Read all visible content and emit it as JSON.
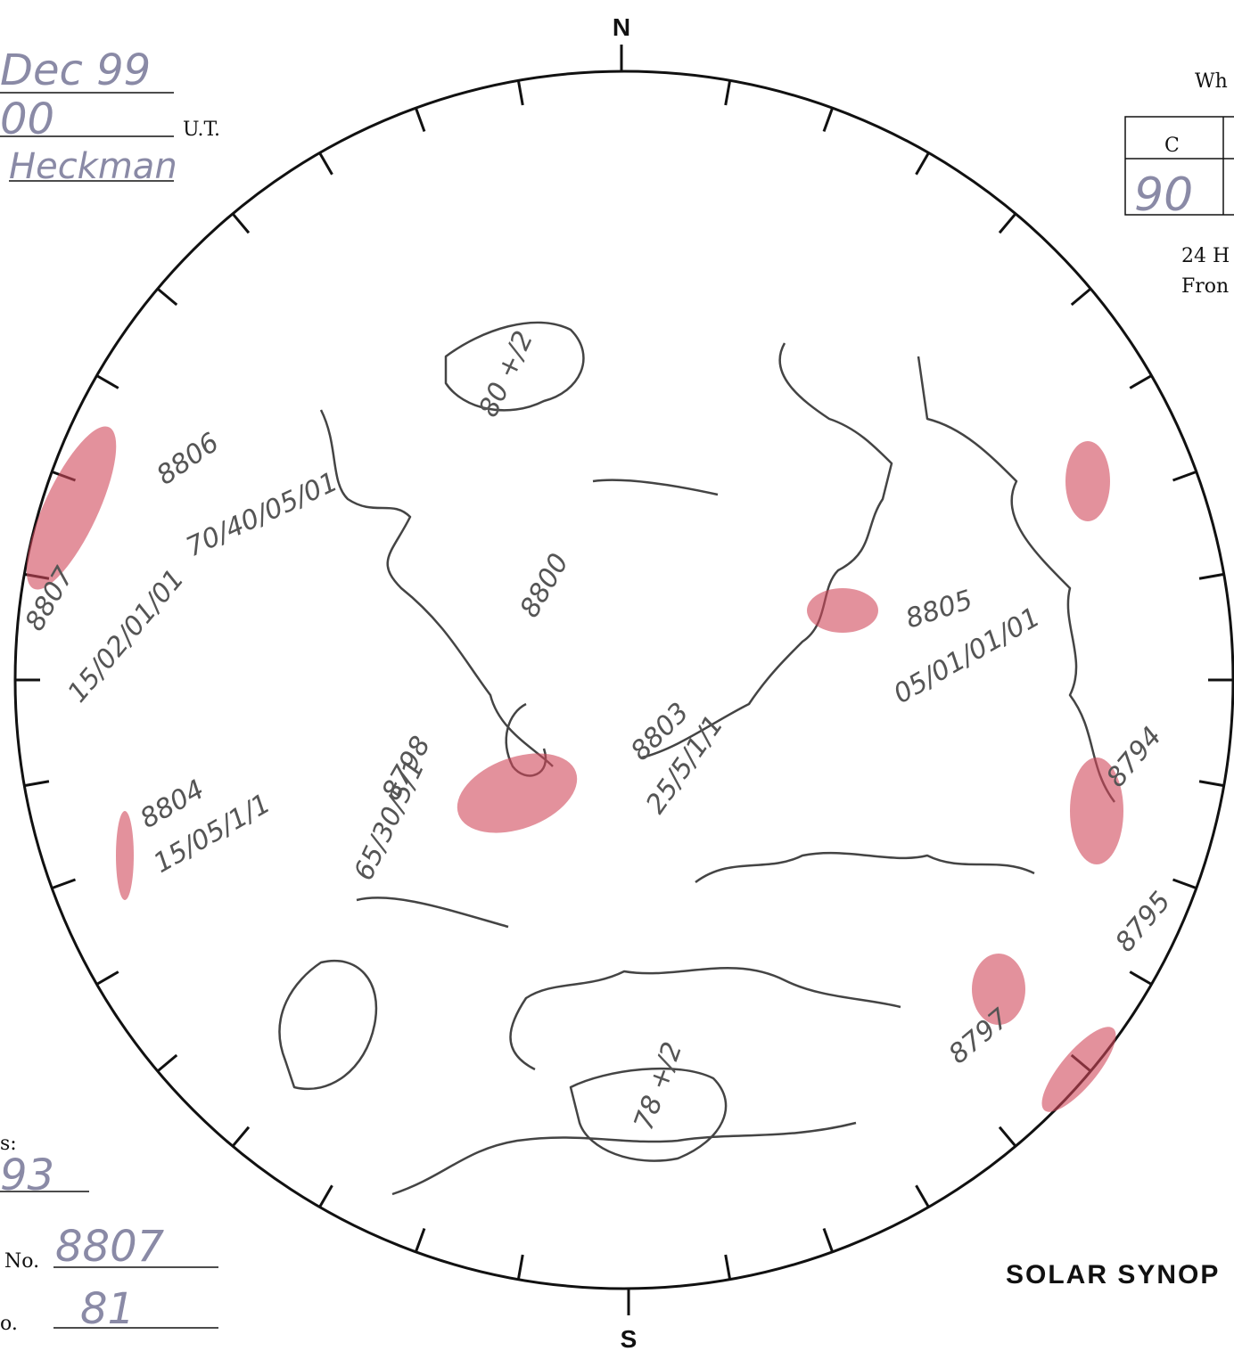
{
  "header": {
    "date": "Dec 99",
    "time": "00",
    "time_unit": "U.T.",
    "observer": "Heckman"
  },
  "compass": {
    "north": "N",
    "south": "S"
  },
  "info_box": {
    "heading": "Wh",
    "column": "C",
    "value": "90",
    "note_line1": "24 H",
    "note_line2": "Fron"
  },
  "footer": {
    "label1": "s:",
    "value1": "93",
    "label2": "No.",
    "value2": "8807",
    "label3": "o.",
    "value3": "81",
    "title": "SOLAR SYNOP"
  },
  "regions": [
    {
      "number": "8806",
      "classification": "70/40/05/01"
    },
    {
      "number": "8807",
      "classification": "15/02/01/01"
    },
    {
      "number": "8800"
    },
    {
      "number": "8805",
      "classification": "05/01/01/01"
    },
    {
      "number": "8798",
      "classification": "65/30/5/1"
    },
    {
      "number": "8803",
      "classification": "25/5/1/1"
    },
    {
      "number": "8804",
      "classification": "15/05/1/1"
    },
    {
      "number": "8794"
    },
    {
      "number": "8795"
    },
    {
      "number": "8797"
    }
  ],
  "plages": [
    {
      "label": "80 +/2"
    },
    {
      "label": "78 +/2"
    }
  ]
}
